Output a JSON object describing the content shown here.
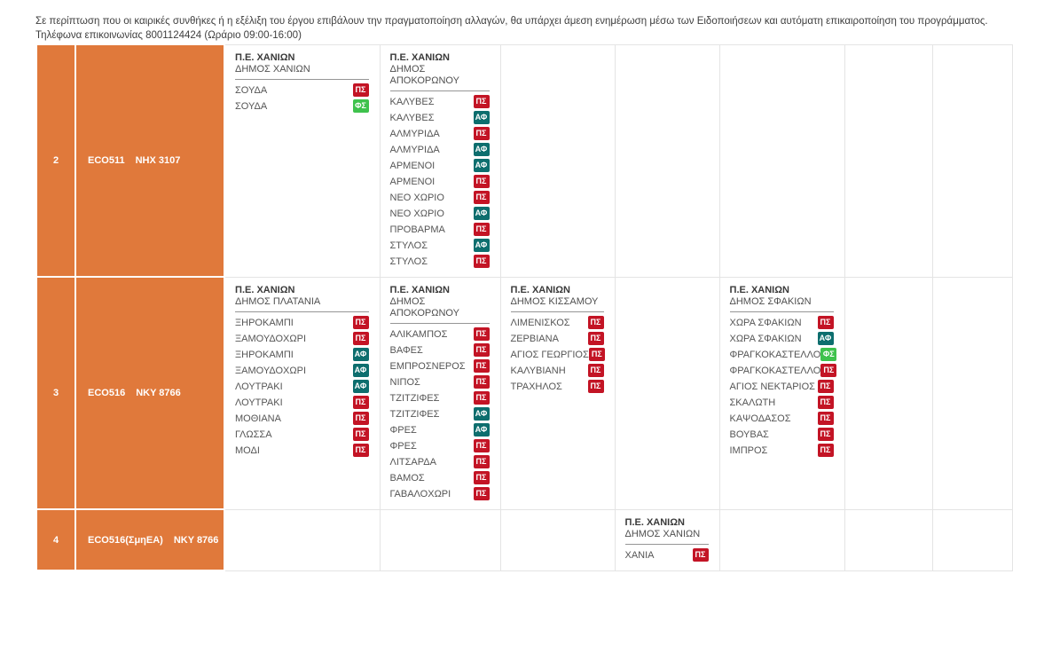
{
  "colors": {
    "row_header_orange": "#e0793b",
    "tag_colors": {
      "ΠΣ": "#c31425",
      "ΑΦ": "#0d6e6e",
      "ΦΣ": "#3fc24d"
    }
  },
  "rows": [
    {
      "num": "2",
      "code": "ECO511",
      "plate": "NHX 3107",
      "cells": {
        "0": {
          "region": "Π.Ε. ΧΑΝΙΩΝ",
          "municipality": "ΔΗΜΟΣ ΧΑΝΙΩΝ",
          "items": [
            [
              "ΣΟΥΔΑ",
              "ΠΣ"
            ],
            [
              "ΣΟΥΔΑ",
              "ΦΣ"
            ]
          ]
        },
        "1": {
          "region": "Π.Ε. ΧΑΝΙΩΝ",
          "municipality": "ΔΗΜΟΣ ΑΠΟΚΟΡΩΝΟΥ",
          "items": [
            [
              "ΚΑΛΥΒΕΣ",
              "ΠΣ"
            ],
            [
              "ΚΑΛΥΒΕΣ",
              "ΑΦ"
            ],
            [
              "ΑΛΜΥΡΙΔΑ",
              "ΠΣ"
            ],
            [
              "ΑΛΜΥΡΙΔΑ",
              "ΑΦ"
            ],
            [
              "ΑΡΜΕΝΟΙ",
              "ΑΦ"
            ],
            [
              "ΑΡΜΕΝΟΙ",
              "ΠΣ"
            ],
            [
              "ΝΕΟ ΧΩΡΙΟ",
              "ΠΣ"
            ],
            [
              "ΝΕΟ ΧΩΡΙΟ",
              "ΑΦ"
            ],
            [
              "ΠΡΟΒΑΡΜΑ",
              "ΠΣ"
            ],
            [
              "ΣΤΥΛΟΣ",
              "ΑΦ"
            ],
            [
              "ΣΤΥΛΟΣ",
              "ΠΣ"
            ]
          ]
        }
      }
    },
    {
      "num": "3",
      "code": "ECO516",
      "plate": "NKY 8766",
      "cells": {
        "0": {
          "region": "Π.Ε. ΧΑΝΙΩΝ",
          "municipality": "ΔΗΜΟΣ ΠΛΑΤΑΝΙΑ",
          "items": [
            [
              "ΞΗΡΟΚΑΜΠΙ",
              "ΠΣ"
            ],
            [
              "ΞΑΜΟΥΔΟΧΩΡΙ",
              "ΠΣ"
            ],
            [
              "ΞΗΡΟΚΑΜΠΙ",
              "ΑΦ"
            ],
            [
              "ΞΑΜΟΥΔΟΧΩΡΙ",
              "ΑΦ"
            ],
            [
              "ΛΟΥΤΡΑΚΙ",
              "ΑΦ"
            ],
            [
              "ΛΟΥΤΡΑΚΙ",
              "ΠΣ"
            ],
            [
              "ΜΟΘΙΑΝΑ",
              "ΠΣ"
            ],
            [
              "ΓΛΩΣΣΑ",
              "ΠΣ"
            ],
            [
              "ΜΟΔΙ",
              "ΠΣ"
            ]
          ]
        },
        "1": {
          "region": "Π.Ε. ΧΑΝΙΩΝ",
          "municipality": "ΔΗΜΟΣ ΑΠΟΚΟΡΩΝΟΥ",
          "items": [
            [
              "ΑΛΙΚΑΜΠΟΣ",
              "ΠΣ"
            ],
            [
              "ΒΑΦΕΣ",
              "ΠΣ"
            ],
            [
              "ΕΜΠΡΟΣΝΕΡΟΣ",
              "ΠΣ"
            ],
            [
              "ΝΙΠΟΣ",
              "ΠΣ"
            ],
            [
              "ΤΖΙΤΖΙΦΕΣ",
              "ΠΣ"
            ],
            [
              "ΤΖΙΤΖΙΦΕΣ",
              "ΑΦ"
            ],
            [
              "ΦΡΕΣ",
              "ΑΦ"
            ],
            [
              "ΦΡΕΣ",
              "ΠΣ"
            ],
            [
              "ΛΙΤΣΑΡΔΑ",
              "ΠΣ"
            ],
            [
              "ΒΑΜΟΣ",
              "ΠΣ"
            ],
            [
              "ΓΑΒΑΛΟΧΩΡΙ",
              "ΠΣ"
            ]
          ]
        },
        "2": {
          "region": "Π.Ε. ΧΑΝΙΩΝ",
          "municipality": "ΔΗΜΟΣ ΚΙΣΣΑΜΟΥ",
          "items": [
            [
              "ΛΙΜΕΝΙΣΚΟΣ",
              "ΠΣ"
            ],
            [
              "ΖΕΡΒΙΑΝΑ",
              "ΠΣ"
            ],
            [
              "ΑΓΙΟΣ ΓΕΩΡΓΙΟΣ",
              "ΠΣ"
            ],
            [
              "ΚΑΛΥΒΙΑΝΗ",
              "ΠΣ"
            ],
            [
              "ΤΡΑΧΗΛΟΣ",
              "ΠΣ"
            ]
          ]
        },
        "4": {
          "region": "Π.Ε. ΧΑΝΙΩΝ",
          "municipality": "ΔΗΜΟΣ ΣΦΑΚΙΩΝ",
          "items": [
            [
              "ΧΩΡΑ ΣΦΑΚΙΩΝ",
              "ΠΣ"
            ],
            [
              "ΧΩΡΑ ΣΦΑΚΙΩΝ",
              "ΑΦ"
            ],
            [
              "ΦΡΑΓΚΟΚΑΣΤΕΛΛΟ",
              "ΦΣ"
            ],
            [
              "ΦΡΑΓΚΟΚΑΣΤΕΛΛΟ",
              "ΠΣ"
            ],
            [
              "ΑΓΙΟΣ ΝΕΚΤΑΡΙΟΣ",
              "ΠΣ"
            ],
            [
              "ΣΚΑΛΩΤΗ",
              "ΠΣ"
            ],
            [
              "ΚΑΨΟΔΑΣΟΣ",
              "ΠΣ"
            ],
            [
              "ΒΟΥΒΑΣ",
              "ΠΣ"
            ],
            [
              "ΙΜΠΡΟΣ",
              "ΠΣ"
            ]
          ]
        }
      }
    },
    {
      "num": "4",
      "code": "ECO516(ΣμηΕΑ)",
      "plate": "NKY 8766",
      "cells": {
        "3": {
          "region": "Π.Ε. ΧΑΝΙΩΝ",
          "municipality": "ΔΗΜΟΣ ΧΑΝΙΩΝ",
          "items": [
            [
              "ΧΑΝΙΑ",
              "ΠΣ"
            ]
          ]
        }
      }
    }
  ],
  "footer": {
    "line1": "Σε περίπτωση που οι καιρικές συνθήκες ή η εξέλιξη του έργου επιβάλουν την πραγματοποίηση αλλαγών, θα υπάρχει άμεση ενημέρωση μέσω των Ειδοποιήσεων και αυτόματη επικαιροποίηση του προγράμματος.",
    "line2": "Τηλέφωνα επικοινωνίας 8001124424 (Ωράριο 09:00-16:00)"
  }
}
